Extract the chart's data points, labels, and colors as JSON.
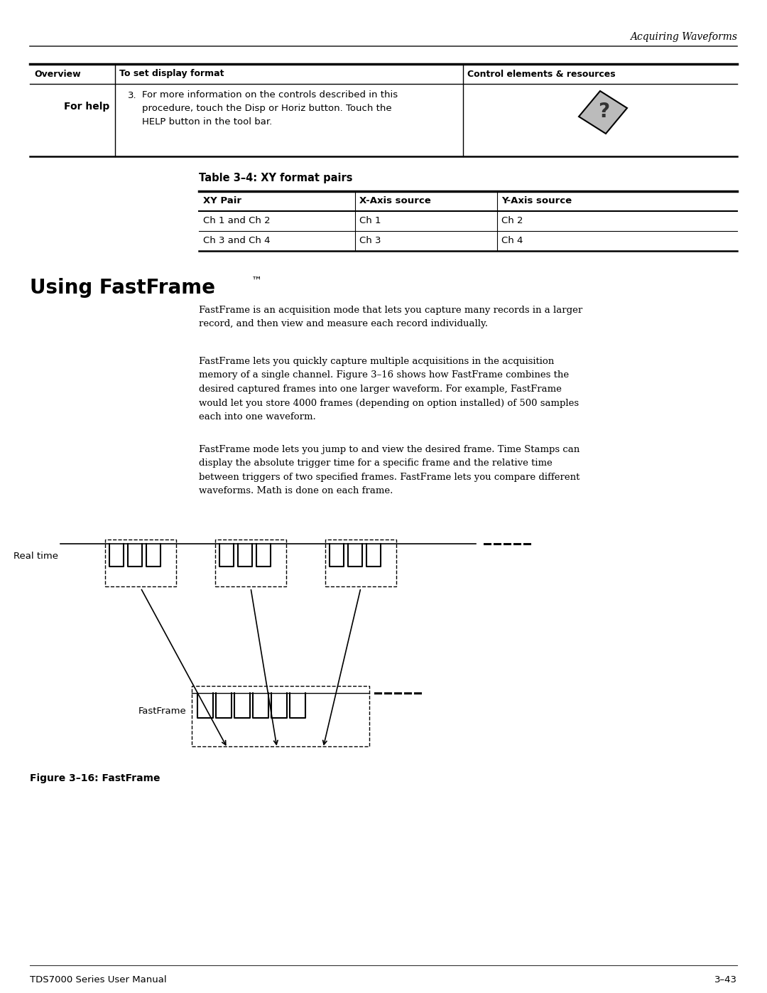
{
  "page_header_right": "Acquiring Waveforms",
  "table1_col_headers": [
    "Overview",
    "To set display format",
    "Control elements & resources"
  ],
  "table2_title": "Table 3–4: XY format pairs",
  "table2_col_headers": [
    "XY Pair",
    "X-Axis source",
    "Y-Axis source"
  ],
  "table2_rows": [
    [
      "Ch 1 and Ch 2",
      "Ch 1",
      "Ch 2"
    ],
    [
      "Ch 3 and Ch 4",
      "Ch 3",
      "Ch 4"
    ]
  ],
  "section_title": "Using FastFrame™",
  "para1": "FastFrame is an acquisition mode that lets you capture many records in a larger\nrecord, and then view and measure each record individually.",
  "para2": "FastFrame lets you quickly capture multiple acquisitions in the acquisition\nmemory of a single channel. Figure 3–16 shows how FastFrame combines the\ndesired captured frames into one larger waveform. For example, FastFrame\nwould let you store 4000 frames (depending on option installed) of 500 samples\neach into one waveform.",
  "para3": "FastFrame mode lets you jump to and view the desired frame. Time Stamps can\ndisplay the absolute trigger time for a specific frame and the relative time\nbetween triggers of two specified frames. FastFrame lets you compare different\nwaveforms. Math is done on each frame.",
  "label_realtime": "Real time",
  "label_fastframe": "FastFrame",
  "fig_caption": "Figure 3–16: FastFrame",
  "footer_left": "TDS7000 Series User Manual",
  "footer_right": "3–43",
  "bg_color": "#ffffff",
  "text_color": "#000000"
}
